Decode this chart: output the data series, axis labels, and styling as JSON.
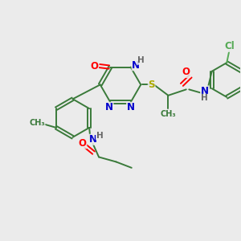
{
  "background_color": "#ebebeb",
  "bond_color": "#3a7a3a",
  "atom_colors": {
    "O": "#ff0000",
    "N": "#0000cc",
    "S": "#aaaa00",
    "Cl": "#55aa55",
    "H": "#666666",
    "C": "#3a7a3a"
  },
  "lw": 1.4,
  "fs": 8.5
}
